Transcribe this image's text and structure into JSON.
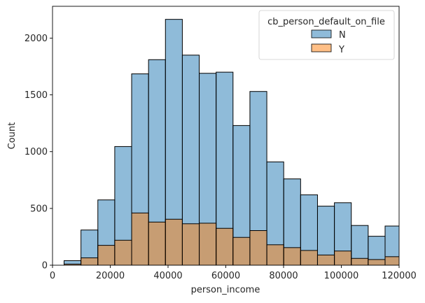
{
  "chart_data": {
    "type": "bar",
    "subtype": "overlapping-histogram",
    "xlabel": "person_income",
    "ylabel": "Count",
    "xlim": [
      0,
      120000
    ],
    "ylim": [
      0,
      2280
    ],
    "xticks": [
      0,
      20000,
      40000,
      60000,
      80000,
      100000,
      120000
    ],
    "yticks": [
      0,
      500,
      1000,
      1500,
      2000
    ],
    "grid": false,
    "bin_width": 5850,
    "legend": {
      "title": "cb_person_default_on_file",
      "placement": "top-right",
      "entries": [
        {
          "label": "N",
          "color": "#1f77b4"
        },
        {
          "label": "Y",
          "color": "#ff7f0e"
        }
      ]
    },
    "series": [
      {
        "name": "N",
        "color": "#1f77b4",
        "bins": [
          {
            "x0": 4000,
            "x1": 9850,
            "value": 40
          },
          {
            "x0": 9850,
            "x1": 15700,
            "value": 310
          },
          {
            "x0": 15700,
            "x1": 21550,
            "value": 575
          },
          {
            "x0": 21550,
            "x1": 27400,
            "value": 1045
          },
          {
            "x0": 27400,
            "x1": 33250,
            "value": 1685
          },
          {
            "x0": 33250,
            "x1": 39100,
            "value": 1810
          },
          {
            "x0": 39100,
            "x1": 44950,
            "value": 2165
          },
          {
            "x0": 44950,
            "x1": 50800,
            "value": 1850
          },
          {
            "x0": 50800,
            "x1": 56650,
            "value": 1690
          },
          {
            "x0": 56650,
            "x1": 62500,
            "value": 1700
          },
          {
            "x0": 62500,
            "x1": 68350,
            "value": 1230
          },
          {
            "x0": 68350,
            "x1": 74200,
            "value": 1530
          },
          {
            "x0": 74200,
            "x1": 80050,
            "value": 910
          },
          {
            "x0": 80050,
            "x1": 85900,
            "value": 760
          },
          {
            "x0": 85900,
            "x1": 91750,
            "value": 620
          },
          {
            "x0": 91750,
            "x1": 97600,
            "value": 520
          },
          {
            "x0": 97600,
            "x1": 103450,
            "value": 550
          },
          {
            "x0": 103450,
            "x1": 109300,
            "value": 350
          },
          {
            "x0": 109300,
            "x1": 115150,
            "value": 255
          },
          {
            "x0": 115150,
            "x1": 121000,
            "value": 345
          }
        ]
      },
      {
        "name": "Y",
        "color": "#ff7f0e",
        "bins": [
          {
            "x0": 4000,
            "x1": 9850,
            "value": 10
          },
          {
            "x0": 9850,
            "x1": 15700,
            "value": 65
          },
          {
            "x0": 15700,
            "x1": 21550,
            "value": 175
          },
          {
            "x0": 21550,
            "x1": 27400,
            "value": 220
          },
          {
            "x0": 27400,
            "x1": 33250,
            "value": 460
          },
          {
            "x0": 33250,
            "x1": 39100,
            "value": 380
          },
          {
            "x0": 39100,
            "x1": 44950,
            "value": 405
          },
          {
            "x0": 44950,
            "x1": 50800,
            "value": 365
          },
          {
            "x0": 50800,
            "x1": 56650,
            "value": 370
          },
          {
            "x0": 56650,
            "x1": 62500,
            "value": 325
          },
          {
            "x0": 62500,
            "x1": 68350,
            "value": 245
          },
          {
            "x0": 68350,
            "x1": 74200,
            "value": 305
          },
          {
            "x0": 74200,
            "x1": 80050,
            "value": 180
          },
          {
            "x0": 80050,
            "x1": 85900,
            "value": 155
          },
          {
            "x0": 85900,
            "x1": 91750,
            "value": 130
          },
          {
            "x0": 91750,
            "x1": 97600,
            "value": 90
          },
          {
            "x0": 97600,
            "x1": 103450,
            "value": 125
          },
          {
            "x0": 103450,
            "x1": 109300,
            "value": 60
          },
          {
            "x0": 109300,
            "x1": 115150,
            "value": 50
          },
          {
            "x0": 115150,
            "x1": 121000,
            "value": 75
          }
        ]
      }
    ]
  }
}
